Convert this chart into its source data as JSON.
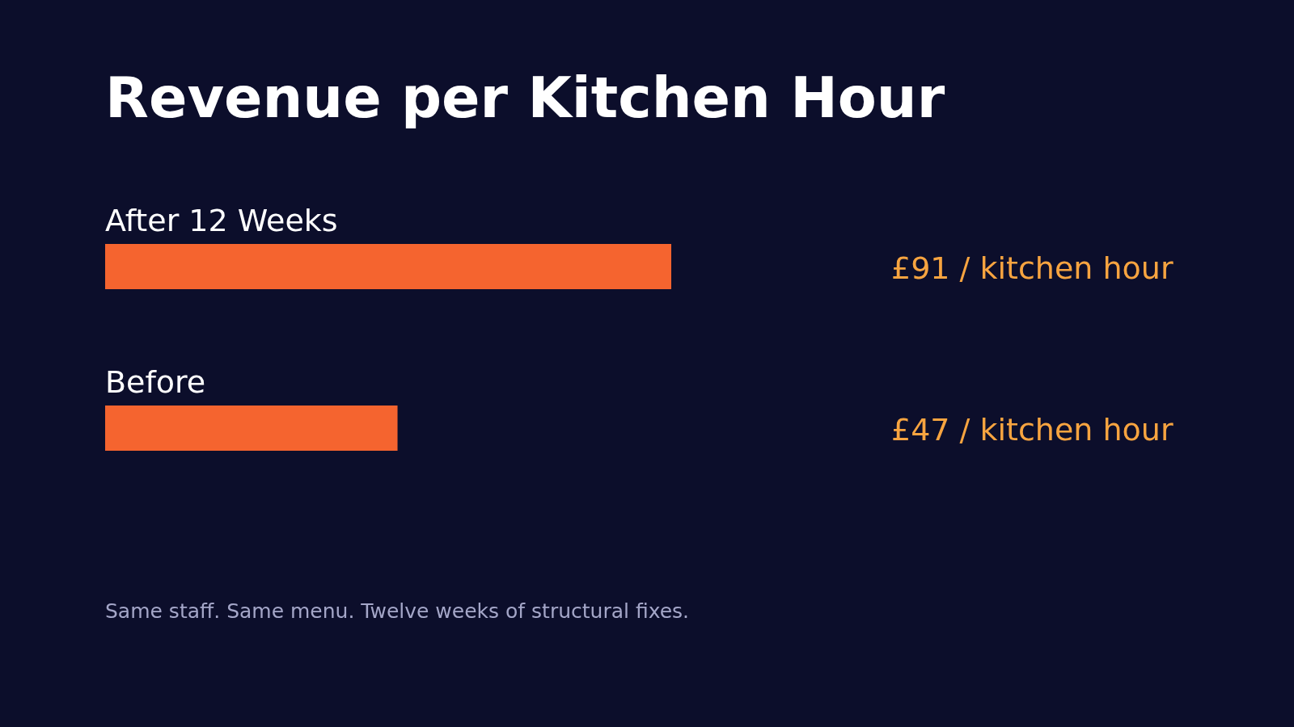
{
  "chart_data": {
    "type": "bar",
    "orientation": "horizontal",
    "title": "Revenue per Kitchen Hour",
    "categories": [
      "After 12 Weeks",
      "Before"
    ],
    "values": [
      91,
      47
    ],
    "value_labels": [
      "£91 / kitchen hour",
      "£47 / kitchen hour"
    ],
    "color": "#f5642f",
    "annotations": [
      "Same staff. Same menu. Twelve weeks of structural fixes."
    ]
  }
}
